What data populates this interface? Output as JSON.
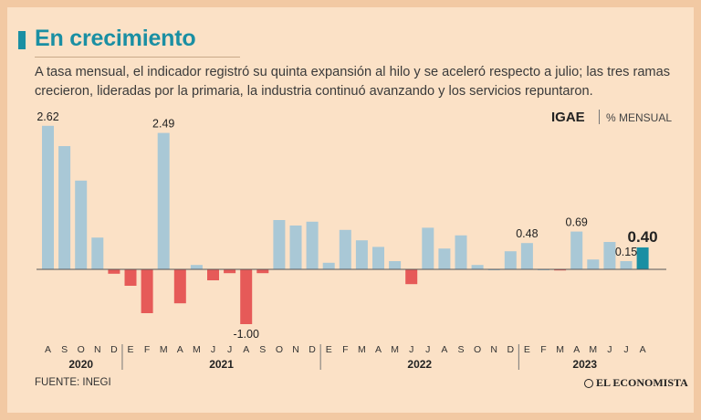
{
  "header": {
    "title": "En crecimiento",
    "subtitle": "A tasa mensual, el indicador registró su quinta expansión al hilo y se aceleró respecto a julio; las tres ramas crecieron, lideradas por la primaria, la industria continuó avanzando y los servicios repuntaron."
  },
  "legend": {
    "indicator": "IGAE",
    "unit": "% MENSUAL"
  },
  "footer": {
    "source": "FUENTE: INEGI",
    "brand": "EL ECONOMISTA"
  },
  "colors": {
    "positive": "#a9c8d6",
    "negative": "#e65a58",
    "highlight": "#1a8fa3",
    "accent": "#1a8fa3"
  },
  "chart_data": {
    "type": "bar",
    "categories": [
      "A",
      "S",
      "O",
      "N",
      "D",
      "E",
      "F",
      "M",
      "A",
      "M",
      "J",
      "J",
      "A",
      "S",
      "O",
      "N",
      "D",
      "E",
      "F",
      "M",
      "A",
      "M",
      "J",
      "J",
      "A",
      "S",
      "O",
      "N",
      "D",
      "E",
      "F",
      "M",
      "A",
      "M",
      "J",
      "J",
      "A"
    ],
    "years": [
      {
        "label": "2020",
        "start": 0,
        "end": 4
      },
      {
        "label": "2021",
        "start": 5,
        "end": 16
      },
      {
        "label": "2022",
        "start": 17,
        "end": 28
      },
      {
        "label": "2023",
        "start": 29,
        "end": 36
      }
    ],
    "values": [
      2.62,
      2.25,
      1.62,
      0.58,
      -0.08,
      -0.3,
      -0.8,
      2.49,
      -0.62,
      0.08,
      -0.2,
      -0.07,
      -1.0,
      -0.07,
      0.9,
      0.8,
      0.87,
      0.12,
      0.72,
      0.53,
      0.41,
      0.15,
      -0.27,
      0.76,
      0.38,
      0.62,
      0.08,
      0.0,
      0.33,
      0.48,
      0.0,
      -0.02,
      0.69,
      0.18,
      0.5,
      0.15,
      0.4
    ],
    "data_labels": [
      {
        "index": 0,
        "text": "2.62"
      },
      {
        "index": 7,
        "text": "2.49"
      },
      {
        "index": 12,
        "text": "-1.00"
      },
      {
        "index": 29,
        "text": "0.48"
      },
      {
        "index": 32,
        "text": "0.69"
      },
      {
        "index": 35,
        "text": "0.15"
      },
      {
        "index": 36,
        "text": "0.40"
      }
    ],
    "highlight_index": 36,
    "ylim": [
      -1.3,
      2.8
    ],
    "grid": false
  }
}
